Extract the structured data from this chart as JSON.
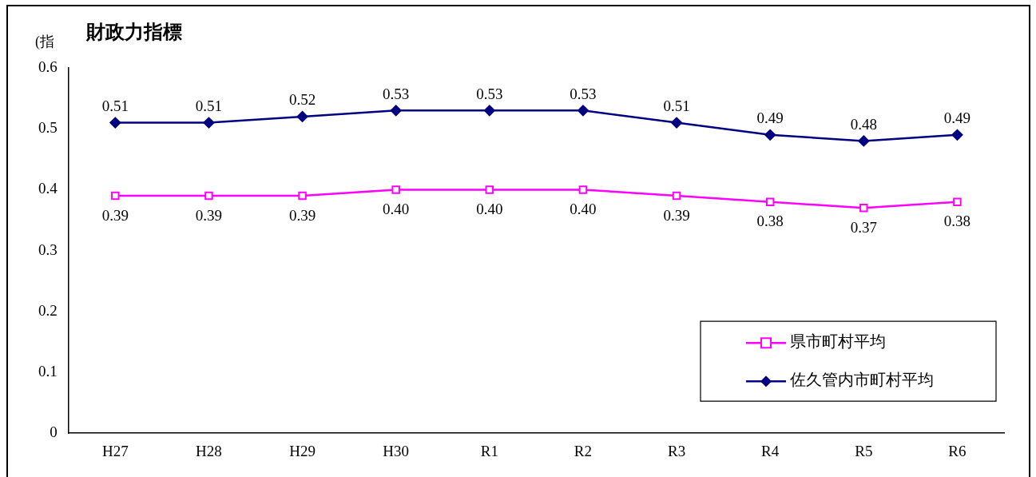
{
  "chart_data": {
    "type": "line",
    "title": "財政力指標",
    "ylabel": "(指",
    "categories": [
      "H27",
      "H28",
      "H29",
      "H30",
      "R1",
      "R2",
      "R3",
      "R4",
      "R5",
      "R6"
    ],
    "series": [
      {
        "name": "県市町村平均",
        "color": "#ff00ff",
        "marker": "square",
        "values": [
          0.39,
          0.39,
          0.39,
          0.4,
          0.4,
          0.4,
          0.39,
          0.38,
          0.37,
          0.38
        ],
        "value_labels": [
          "0.39",
          "0.39",
          "0.39",
          "0.40",
          "0.40",
          "0.40",
          "0.39",
          "0.38",
          "0.37",
          "0.38"
        ]
      },
      {
        "name": "佐久管内市町村平均",
        "color": "#000080",
        "marker": "diamond",
        "values": [
          0.51,
          0.51,
          0.52,
          0.53,
          0.53,
          0.53,
          0.51,
          0.49,
          0.48,
          0.49
        ],
        "value_labels": [
          "0.51",
          "0.51",
          "0.52",
          "0.53",
          "0.53",
          "0.53",
          "0.51",
          "0.49",
          "0.48",
          "0.49"
        ]
      }
    ],
    "ylim": [
      0,
      0.6
    ],
    "yticks": [
      {
        "value": 0,
        "label": "0"
      },
      0.1,
      0.2,
      0.3,
      0.4,
      0.5,
      0.6
    ],
    "grid": false,
    "legend": "bottom right",
    "line_style": "solid"
  }
}
